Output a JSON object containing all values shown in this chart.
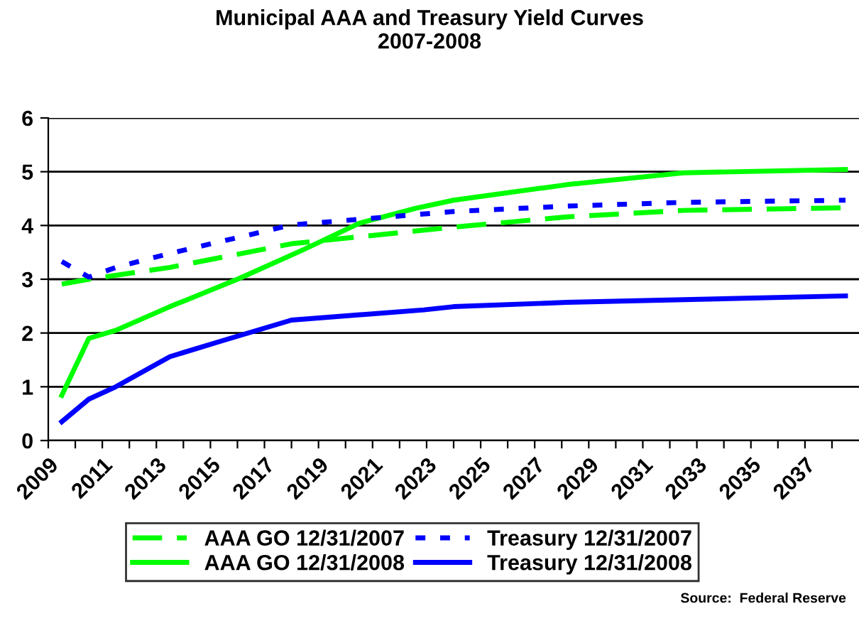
{
  "chart_data": {
    "type": "line",
    "title": "Municipal AAA and Treasury Yield Curves\n2007-2008",
    "series": [
      {
        "name": "AAA GO 12/31/2007",
        "color": "#00ff00",
        "line_style": "dashed",
        "x": [
          2009.5,
          2010.5,
          2013.5,
          2018,
          2024,
          2028.2,
          2032.5,
          2038.5
        ],
        "values": [
          2.91,
          3.0,
          3.22,
          3.66,
          3.97,
          4.16,
          4.28,
          4.33
        ]
      },
      {
        "name": "AAA GO 12/31/2008",
        "color": "#00ff00",
        "line_style": "solid",
        "x": [
          2009.5,
          2010.5,
          2011.5,
          2013.5,
          2016,
          2018.4,
          2020.5,
          2022.6,
          2024,
          2028.2,
          2032.5,
          2038.5
        ],
        "values": [
          0.84,
          1.9,
          2.05,
          2.49,
          3.0,
          3.54,
          4.04,
          4.32,
          4.47,
          4.76,
          4.98,
          5.04
        ]
      },
      {
        "name": "Treasury 12/31/2007",
        "color": "#0000ff",
        "line_style": "dotted",
        "x": [
          2009.5,
          2010.5,
          2011.5,
          2013.5,
          2018,
          2024,
          2028.2,
          2032.5,
          2038.5
        ],
        "values": [
          3.33,
          3.04,
          3.22,
          3.48,
          4.01,
          4.26,
          4.36,
          4.43,
          4.47
        ]
      },
      {
        "name": "Treasury 12/31/2008",
        "color": "#0000ff",
        "line_style": "solid",
        "x": [
          2009.5,
          2010.5,
          2011.5,
          2013.5,
          2015.4,
          2018,
          2022.9,
          2024,
          2028.2,
          2038.5
        ],
        "values": [
          0.35,
          0.77,
          1.0,
          1.56,
          1.85,
          2.24,
          2.43,
          2.49,
          2.57,
          2.69
        ]
      }
    ],
    "xlim": [
      2009,
      2039
    ],
    "xticks": [
      2009,
      {
        "value": 2010,
        "label": null
      },
      2011,
      {
        "value": 2012,
        "label": null
      },
      2013,
      {
        "value": 2014,
        "label": null
      },
      2015,
      {
        "value": 2016,
        "label": null
      },
      2017,
      {
        "value": 2018,
        "label": null
      },
      2019,
      {
        "value": 2020,
        "label": null
      },
      2021,
      {
        "value": 2022,
        "label": null
      },
      2023,
      {
        "value": 2024,
        "label": null
      },
      2025,
      {
        "value": 2026,
        "label": null
      },
      2027,
      {
        "value": 2028,
        "label": null
      },
      2029,
      {
        "value": 2030,
        "label": null
      },
      2031,
      {
        "value": 2032,
        "label": null
      },
      2033,
      {
        "value": 2034,
        "label": null
      },
      2035,
      {
        "value": 2036,
        "label": null
      },
      2037,
      {
        "value": 2038,
        "label": null
      }
    ],
    "ylim": [
      0,
      6
    ],
    "yticks": [
      0,
      1,
      2,
      3,
      4,
      5,
      6
    ],
    "grid": "y",
    "legend": "bottom",
    "marker": "none",
    "annotations": [
      "Source:  Federal Reserve"
    ]
  }
}
